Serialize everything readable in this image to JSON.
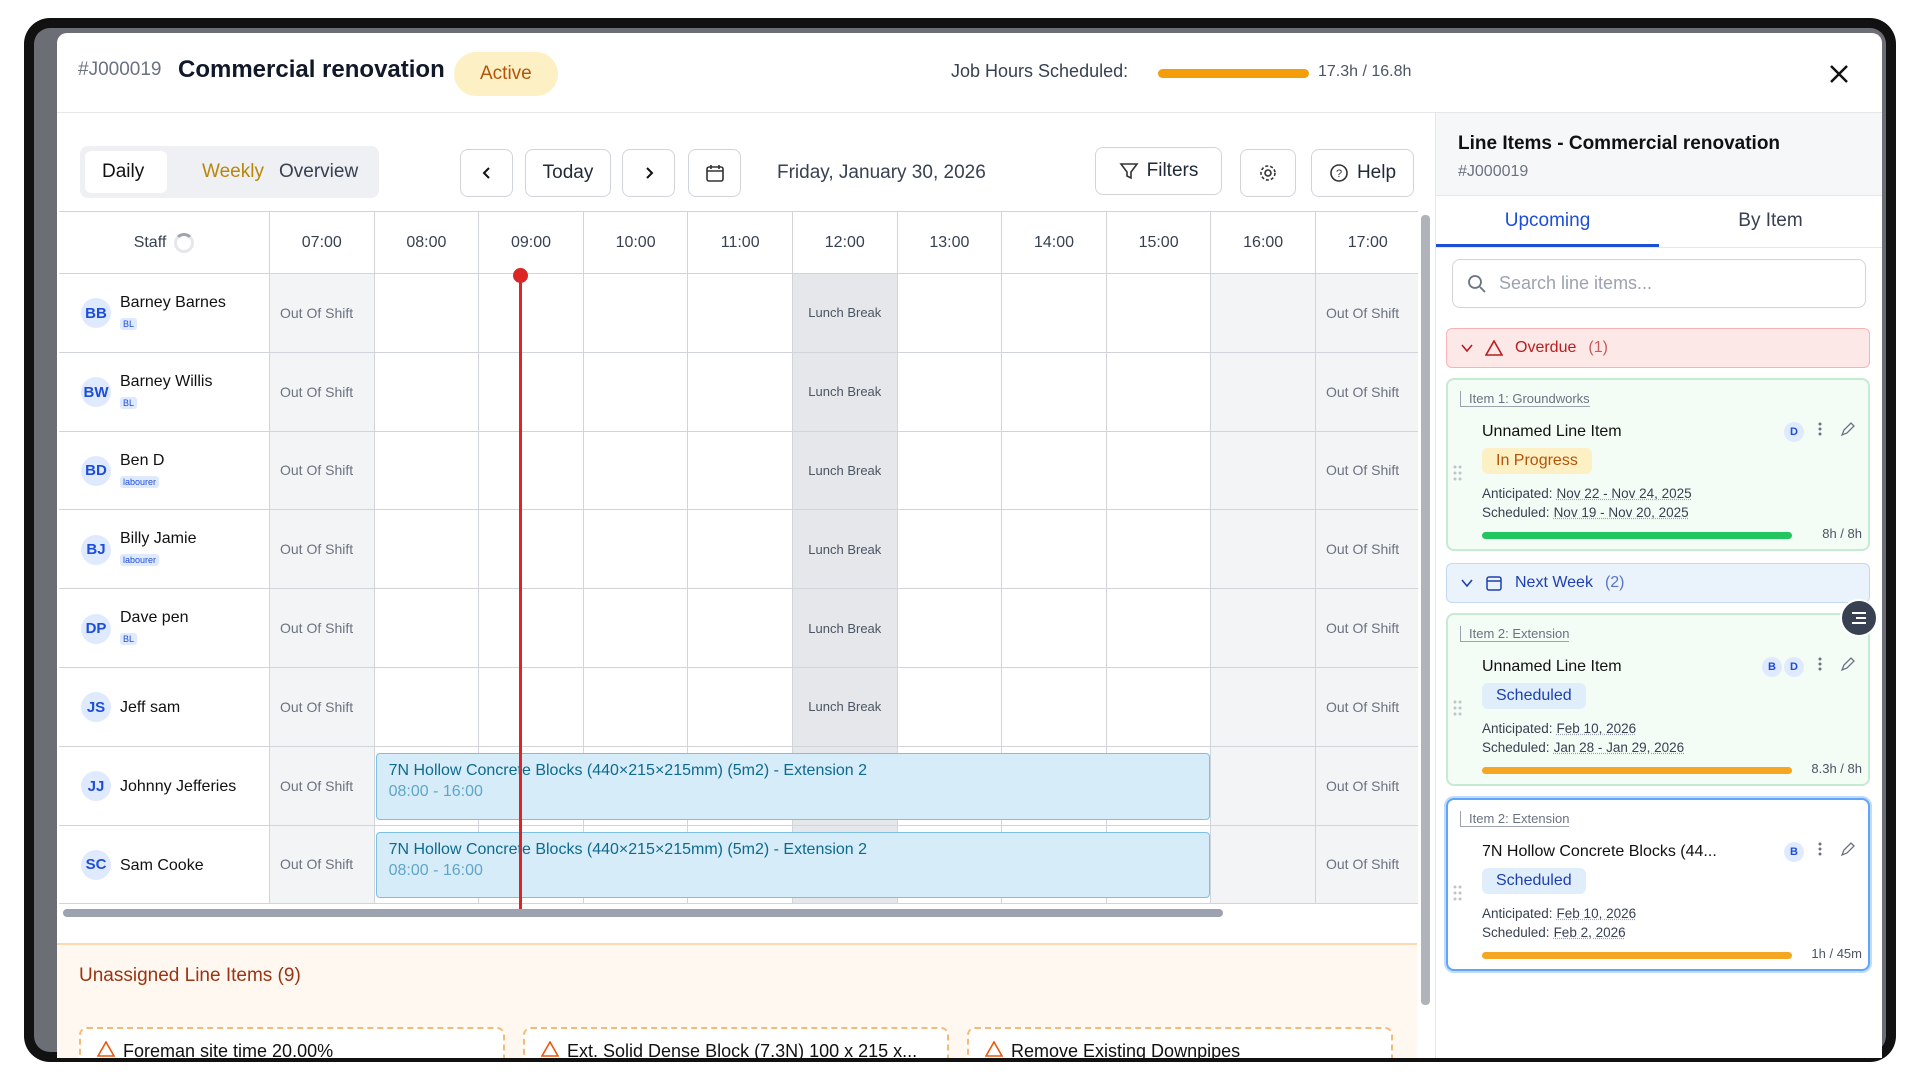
{
  "header": {
    "job_id": "#J000019",
    "title": "Commercial renovation",
    "status": "Active",
    "hours_label": "Job Hours Scheduled:",
    "hours_text": "17.3h / 16.8h"
  },
  "toolbar": {
    "views": [
      "Daily",
      "Weekly",
      "Overview"
    ],
    "today": "Today",
    "date": "Friday, January 30, 2026",
    "filters": "Filters",
    "help": "Help"
  },
  "schedule": {
    "staff_header": "Staff",
    "hours": [
      "07:00",
      "08:00",
      "09:00",
      "10:00",
      "11:00",
      "12:00",
      "13:00",
      "14:00",
      "15:00",
      "16:00",
      "17:00"
    ],
    "out_of_shift": "Out Of Shift",
    "lunch": "Lunch Break",
    "staff": [
      {
        "initials": "BB",
        "name": "Barney Barnes",
        "role": "BL"
      },
      {
        "initials": "BW",
        "name": "Barney Willis",
        "role": "BL"
      },
      {
        "initials": "BD",
        "name": "Ben D",
        "role": "labourer"
      },
      {
        "initials": "BJ",
        "name": "Billy Jamie",
        "role": "labourer"
      },
      {
        "initials": "DP",
        "name": "Dave pen",
        "role": "BL"
      },
      {
        "initials": "JS",
        "name": "Jeff sam"
      },
      {
        "initials": "JJ",
        "name": "Johnny Jefferies",
        "booking": {
          "title": "7N Hollow Concrete Blocks (440×215×215mm) (5m2) - Extension 2",
          "time": "08:00 - 16:00"
        }
      },
      {
        "initials": "SC",
        "name": "Sam Cooke",
        "booking": {
          "title": "7N Hollow Concrete Blocks (440×215×215mm) (5m2) - Extension 2",
          "time": "08:00 - 16:00"
        }
      }
    ]
  },
  "unassigned": {
    "title": "Unassigned Line Items (9)",
    "items": [
      "Foreman site time 20.00%",
      "Ext. Solid Dense Block (7.3N) 100 x 215 x...",
      "Remove Existing Downpipes"
    ]
  },
  "side_panel": {
    "title": "Line Items - Commercial renovation",
    "subtitle": "#J000019",
    "tabs": [
      "Upcoming",
      "By Item"
    ],
    "search_placeholder": "Search line items...",
    "labels": {
      "anticipated": "Anticipated:",
      "scheduled": "Scheduled:"
    },
    "groups": [
      {
        "name": "Overdue",
        "count": "(1)",
        "items": [
          {
            "parent": "Item 1: Groundworks",
            "name": "Unnamed Line Item",
            "assignees": [
              "D"
            ],
            "status": "In Progress",
            "anticipated": "Nov 22 - Nov 24, 2025",
            "scheduled": "Nov 19 - Nov 20, 2025",
            "hours": "8h / 8h",
            "progress_color": "#22c55e"
          }
        ]
      },
      {
        "name": "Next Week",
        "count": "(2)",
        "items": [
          {
            "parent": "Item 2: Extension",
            "name": "Unnamed Line Item",
            "assignees": [
              "B",
              "D"
            ],
            "status": "Scheduled",
            "anticipated": "Feb 10, 2026",
            "scheduled": "Jan 28 - Jan 29, 2026",
            "hours": "8.3h / 8h",
            "progress_color": "#f5a623"
          },
          {
            "parent": "Item 2: Extension",
            "name": "7N Hollow Concrete Blocks (44...",
            "assignees": [
              "B"
            ],
            "status": "Scheduled",
            "anticipated": "Feb 10, 2026",
            "scheduled": "Feb 2, 2026",
            "hours": "1h / 45m",
            "progress_color": "#f5a623"
          }
        ]
      }
    ]
  }
}
